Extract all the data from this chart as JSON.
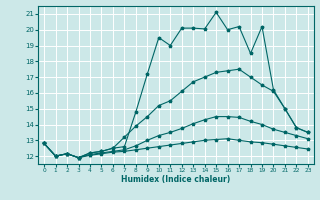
{
  "xlabel": "Humidex (Indice chaleur)",
  "bg_color": "#cce8e8",
  "grid_color": "#ffffff",
  "line_color": "#006666",
  "xlim": [
    -0.5,
    23.5
  ],
  "ylim": [
    11.5,
    21.5
  ],
  "xticks": [
    0,
    1,
    2,
    3,
    4,
    5,
    6,
    7,
    8,
    9,
    10,
    11,
    12,
    13,
    14,
    15,
    16,
    17,
    18,
    19,
    20,
    21,
    22,
    23
  ],
  "yticks": [
    12,
    13,
    14,
    15,
    16,
    17,
    18,
    19,
    20,
    21
  ],
  "line1_x": [
    0,
    1,
    2,
    3,
    4,
    5,
    6,
    7,
    8,
    9,
    10,
    11,
    12,
    13,
    14,
    15,
    16,
    17,
    18,
    19,
    20,
    21,
    22,
    23
  ],
  "line1_y": [
    12.8,
    12.0,
    12.15,
    11.9,
    12.2,
    12.3,
    12.5,
    12.6,
    14.8,
    17.2,
    19.5,
    19.0,
    20.1,
    20.1,
    20.05,
    21.1,
    20.0,
    20.2,
    18.5,
    20.2,
    16.2,
    15.0,
    13.8,
    13.5
  ],
  "line2_x": [
    0,
    1,
    2,
    3,
    4,
    5,
    6,
    7,
    8,
    9,
    10,
    11,
    12,
    13,
    14,
    15,
    16,
    17,
    18,
    19,
    20,
    21,
    22,
    23
  ],
  "line2_y": [
    12.8,
    12.0,
    12.15,
    11.9,
    12.2,
    12.3,
    12.5,
    13.2,
    13.9,
    14.5,
    15.2,
    15.5,
    16.1,
    16.7,
    17.0,
    17.3,
    17.4,
    17.5,
    17.0,
    16.5,
    16.1,
    15.0,
    13.8,
    13.5
  ],
  "line3_x": [
    0,
    1,
    2,
    3,
    4,
    5,
    6,
    7,
    8,
    9,
    10,
    11,
    12,
    13,
    14,
    15,
    16,
    17,
    18,
    19,
    20,
    21,
    22,
    23
  ],
  "line3_y": [
    12.8,
    12.0,
    12.15,
    11.9,
    12.1,
    12.2,
    12.3,
    12.4,
    12.65,
    13.0,
    13.3,
    13.5,
    13.75,
    14.05,
    14.3,
    14.5,
    14.5,
    14.45,
    14.2,
    14.0,
    13.7,
    13.5,
    13.3,
    13.1
  ],
  "line4_x": [
    0,
    1,
    2,
    3,
    4,
    5,
    6,
    7,
    8,
    9,
    10,
    11,
    12,
    13,
    14,
    15,
    16,
    17,
    18,
    19,
    20,
    21,
    22,
    23
  ],
  "line4_y": [
    12.8,
    12.0,
    12.15,
    11.9,
    12.05,
    12.15,
    12.25,
    12.3,
    12.4,
    12.5,
    12.6,
    12.7,
    12.8,
    12.9,
    13.0,
    13.05,
    13.1,
    13.0,
    12.9,
    12.85,
    12.75,
    12.65,
    12.55,
    12.45
  ]
}
